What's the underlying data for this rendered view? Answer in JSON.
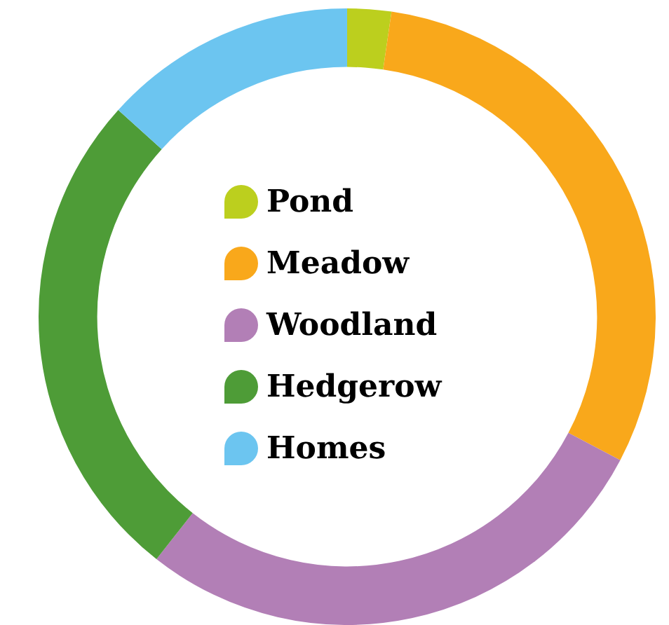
{
  "chart_data": {
    "type": "donut",
    "categories": [
      "Pond",
      "Meadow",
      "Woodland",
      "Hedgerow",
      "Homes"
    ],
    "values": [
      2.3,
      30.4,
      27.9,
      26.1,
      13.3
    ],
    "colors": [
      "#bccf1e",
      "#f9a81b",
      "#b27fb6",
      "#4e9c37",
      "#6cc5f0"
    ],
    "legend": "center"
  }
}
